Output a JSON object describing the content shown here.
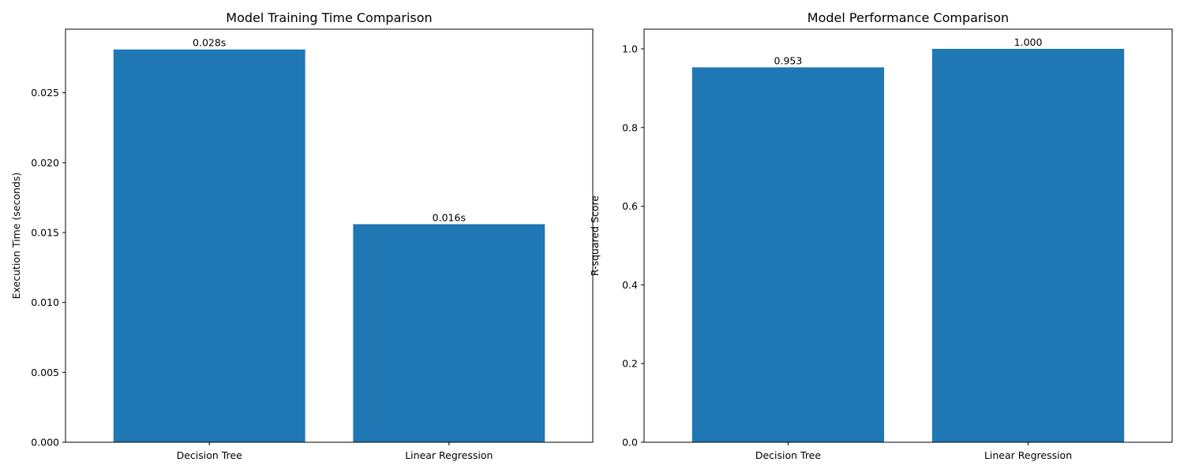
{
  "chart_data": [
    {
      "type": "bar",
      "title": "Model Training Time Comparison",
      "xlabel": "",
      "ylabel": "Execution Time (seconds)",
      "categories": [
        "Decision Tree",
        "Linear Regression"
      ],
      "values": [
        0.0281,
        0.0156
      ],
      "value_labels": [
        "0.028s",
        "0.016s"
      ],
      "ylim": [
        0,
        0.02955
      ],
      "yticks": [
        0.0,
        0.005,
        0.01,
        0.015,
        0.02,
        0.025
      ],
      "ytick_labels": [
        "0.000",
        "0.005",
        "0.010",
        "0.015",
        "0.020",
        "0.025"
      ],
      "bar_color": "#1f77b4",
      "grid": false,
      "legend": "none"
    },
    {
      "type": "bar",
      "title": "Model Performance Comparison",
      "xlabel": "",
      "ylabel": "R-squared Score",
      "categories": [
        "Decision Tree",
        "Linear Regression"
      ],
      "values": [
        0.953,
        1.0
      ],
      "value_labels": [
        "0.953",
        "1.000"
      ],
      "ylim": [
        0,
        1.05
      ],
      "yticks": [
        0.0,
        0.2,
        0.4,
        0.6,
        0.8,
        1.0
      ],
      "ytick_labels": [
        "0.0",
        "0.2",
        "0.4",
        "0.6",
        "0.8",
        "1.0"
      ],
      "bar_color": "#1f77b4",
      "grid": false,
      "legend": "none"
    }
  ]
}
